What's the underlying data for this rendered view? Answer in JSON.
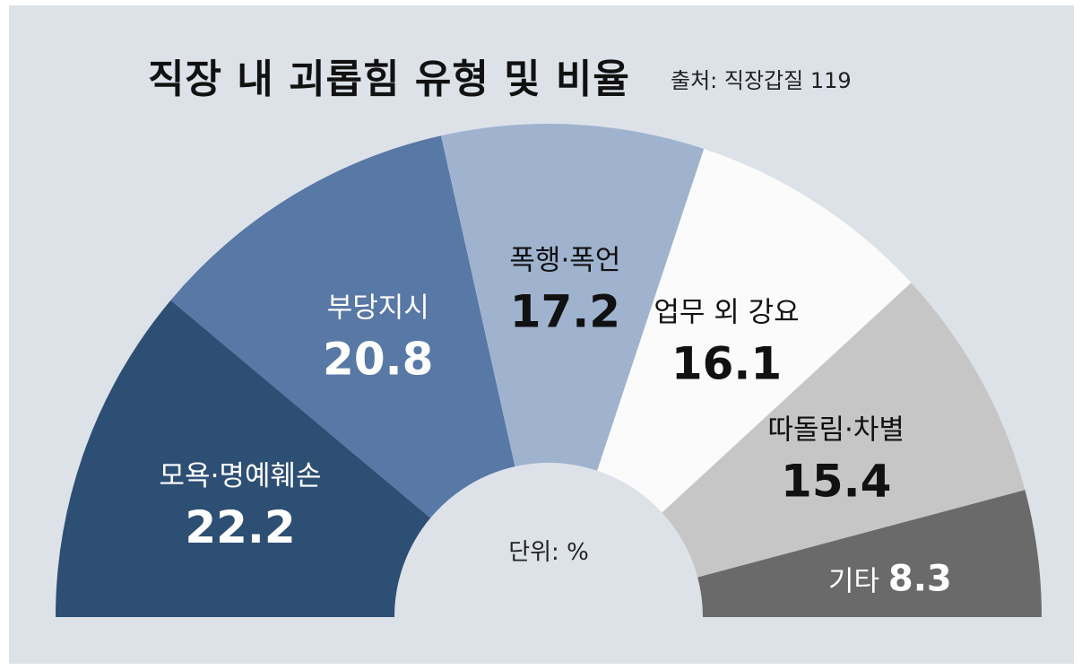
{
  "header": {
    "title": "직장 내 괴롭힘 유형 및 비율",
    "source": "출처: 직장갑질 119"
  },
  "chart_data": {
    "type": "pie",
    "subtype": "semicircle-donut",
    "unit_label": "단위: %",
    "segments": [
      {
        "label": "모욕·명예훼손",
        "value": 22.2,
        "value_text": "22.2",
        "color": "#2e4f74",
        "text_color": "#ffffff"
      },
      {
        "label": "부당지시",
        "value": 20.8,
        "value_text": "20.8",
        "color": "#5878a6",
        "text_color": "#ffffff"
      },
      {
        "label": "폭행·폭언",
        "value": 17.2,
        "value_text": "17.2",
        "color": "#9fb3cf",
        "text_color": "#111111"
      },
      {
        "label": "업무 외 강요",
        "value": 16.1,
        "value_text": "16.1",
        "color": "#fbfbfb",
        "text_color": "#111111"
      },
      {
        "label": "따돌림·차별",
        "value": 15.4,
        "value_text": "15.4",
        "color": "#c6c6c6",
        "text_color": "#111111"
      },
      {
        "label": "기타",
        "value": 8.3,
        "value_text": "8.3",
        "color": "#6a6a6a",
        "text_color": "#ffffff",
        "inline": true
      }
    ]
  }
}
